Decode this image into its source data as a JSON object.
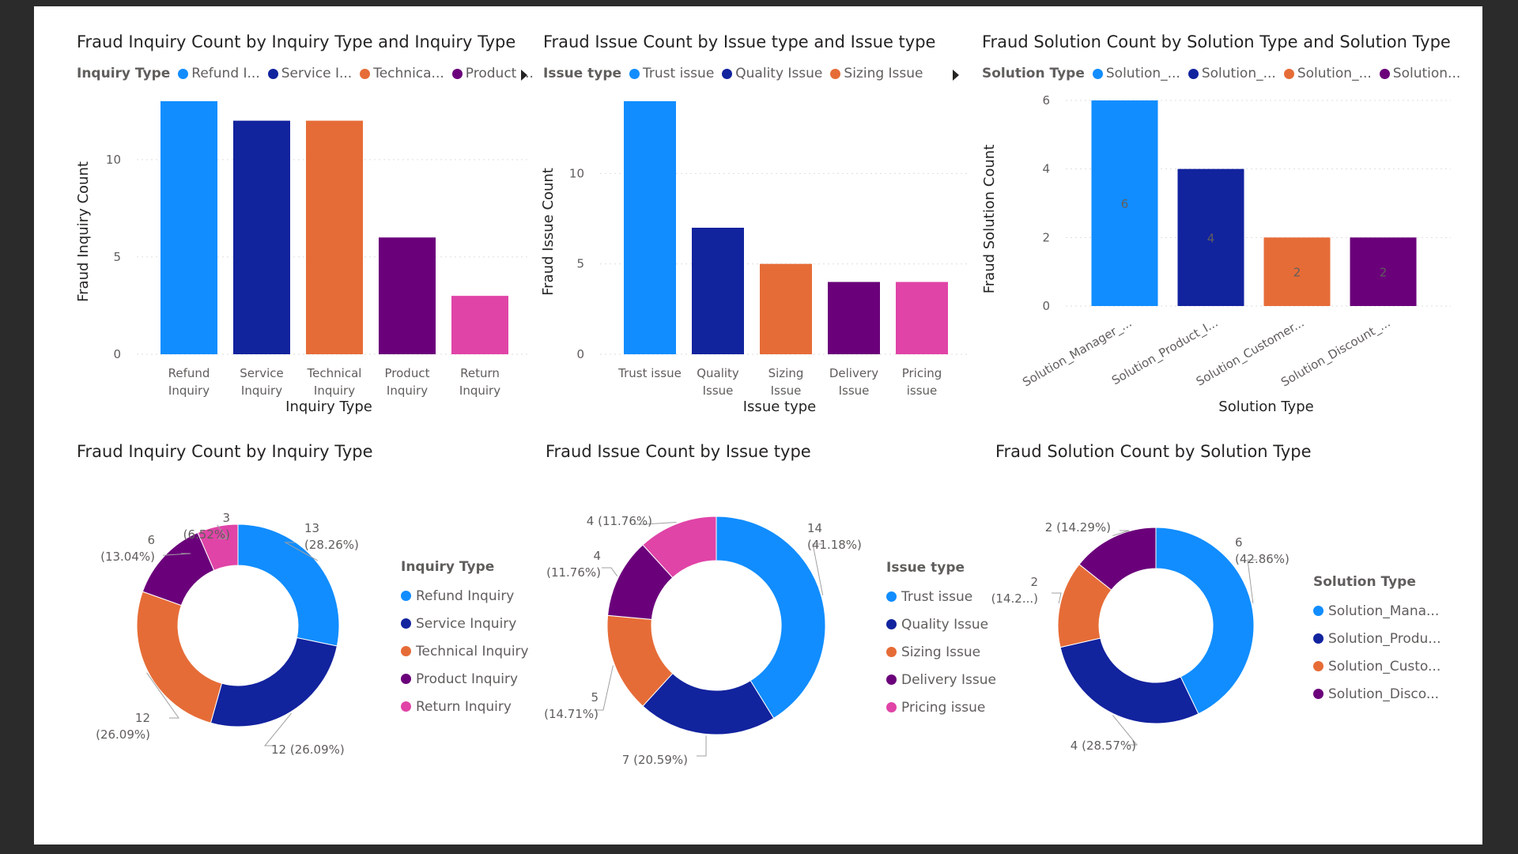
{
  "colors": {
    "c1": "#118DFF",
    "c2": "#12239E",
    "c3": "#E66C37",
    "c4": "#6B007B",
    "c5": "#E044A7"
  },
  "charts": {
    "inquiry_bar": {
      "title": "Fraud Inquiry Count by Inquiry Type and Inquiry Type",
      "legend_title": "Inquiry Type",
      "legend_items": [
        "Refund I...",
        "Service I...",
        "Technica...",
        "Product ..."
      ],
      "xlabel": "Inquiry Type",
      "ylabel": "Fraud Inquiry Count",
      "ticks": [
        "0",
        "5",
        "10"
      ],
      "categories": [
        [
          "Refund",
          "Inquiry"
        ],
        [
          "Service",
          "Inquiry"
        ],
        [
          "Technical",
          "Inquiry"
        ],
        [
          "Product",
          "Inquiry"
        ],
        [
          "Return",
          "Inquiry"
        ]
      ]
    },
    "issue_bar": {
      "title": "Fraud Issue Count by Issue type and Issue type",
      "legend_title": "Issue type",
      "legend_items": [
        "Trust issue",
        "Quality Issue",
        "Sizing Issue"
      ],
      "xlabel": "Issue type",
      "ylabel": "Fraud Issue Count",
      "ticks": [
        "0",
        "5",
        "10"
      ],
      "categories": [
        [
          "Trust issue"
        ],
        [
          "Quality",
          "Issue"
        ],
        [
          "Sizing",
          "Issue"
        ],
        [
          "Delivery",
          "Issue"
        ],
        [
          "Pricing",
          "issue"
        ]
      ]
    },
    "solution_bar": {
      "title": "Fraud Solution Count by Solution Type and Solution Type",
      "legend_title": "Solution Type",
      "legend_items": [
        "Solution_...",
        "Solution_...",
        "Solution_...",
        "Solution..."
      ],
      "xlabel": "Solution Type",
      "ylabel": "Fraud Solution Count",
      "ticks": [
        "0",
        "2",
        "4",
        "6"
      ],
      "categories": [
        "Solution_Manager_...",
        "Solution_Product_I...",
        "Solution_Customer...",
        "Solution_Discount_..."
      ],
      "data_labels": [
        "6",
        "4",
        "2",
        "2"
      ]
    },
    "inquiry_donut": {
      "title": "Fraud Inquiry Count by Inquiry Type",
      "legend_title": "Inquiry Type",
      "legend_items": [
        "Refund Inquiry",
        "Service Inquiry",
        "Technical Inquiry",
        "Product Inquiry",
        "Return Inquiry"
      ],
      "labels": [
        [
          "13",
          "(28.26%)"
        ],
        [
          "12 (26.09%)"
        ],
        [
          "12",
          "(26.09%)"
        ],
        [
          "6",
          "(13.04%)"
        ],
        [
          "3",
          "(6.52%)"
        ]
      ]
    },
    "issue_donut": {
      "title": "Fraud Issue Count by Issue type",
      "legend_title": "Issue type",
      "legend_items": [
        "Trust issue",
        "Quality Issue",
        "Sizing Issue",
        "Delivery Issue",
        "Pricing issue"
      ],
      "labels": [
        [
          "14",
          "(41.18%)"
        ],
        [
          "7 (20.59%)"
        ],
        [
          "5",
          "(14.71%)"
        ],
        [
          "4",
          "(11.76%)"
        ],
        [
          "4 (11.76%)"
        ]
      ]
    },
    "solution_donut": {
      "title": "Fraud Solution Count by Solution Type",
      "legend_title": "Solution Type",
      "legend_items": [
        "Solution_Mana...",
        "Solution_Produ...",
        "Solution_Custo...",
        "Solution_Disco..."
      ],
      "labels": [
        [
          "6",
          "(42.86%)"
        ],
        [
          "4 (28.57%)"
        ],
        [
          "2",
          "(14.2...)"
        ],
        [
          "2 (14.29%)"
        ]
      ]
    }
  },
  "chart_data": [
    {
      "type": "bar",
      "title": "Fraud Inquiry Count by Inquiry Type and Inquiry Type",
      "xlabel": "Inquiry Type",
      "ylabel": "Fraud Inquiry Count",
      "categories": [
        "Refund Inquiry",
        "Service Inquiry",
        "Technical Inquiry",
        "Product Inquiry",
        "Return Inquiry"
      ],
      "values": [
        13,
        12,
        12,
        6,
        3
      ],
      "ylim": [
        0,
        13
      ],
      "grid": true,
      "legend": "top"
    },
    {
      "type": "bar",
      "title": "Fraud Issue Count by Issue type and Issue type",
      "xlabel": "Issue type",
      "ylabel": "Fraud Issue Count",
      "categories": [
        "Trust issue",
        "Quality Issue",
        "Sizing Issue",
        "Delivery Issue",
        "Pricing issue"
      ],
      "values": [
        14,
        7,
        5,
        4,
        4
      ],
      "ylim": [
        0,
        14
      ],
      "grid": true,
      "legend": "top"
    },
    {
      "type": "bar",
      "title": "Fraud Solution Count by Solution Type and Solution Type",
      "xlabel": "Solution Type",
      "ylabel": "Fraud Solution Count",
      "categories": [
        "Solution_Manager_...",
        "Solution_Product_I...",
        "Solution_Customer...",
        "Solution_Discount_..."
      ],
      "values": [
        6,
        4,
        2,
        2
      ],
      "ylim": [
        0,
        6
      ],
      "grid": true,
      "legend": "top"
    },
    {
      "type": "pie",
      "title": "Fraud Inquiry Count by Inquiry Type",
      "categories": [
        "Refund Inquiry",
        "Service Inquiry",
        "Technical Inquiry",
        "Product Inquiry",
        "Return Inquiry"
      ],
      "values": [
        13,
        12,
        12,
        6,
        3
      ],
      "percentages": [
        28.26,
        26.09,
        26.09,
        13.04,
        6.52
      ],
      "legend": "right"
    },
    {
      "type": "pie",
      "title": "Fraud Issue Count by Issue type",
      "categories": [
        "Trust issue",
        "Quality Issue",
        "Sizing Issue",
        "Delivery Issue",
        "Pricing issue"
      ],
      "values": [
        14,
        7,
        5,
        4,
        4
      ],
      "percentages": [
        41.18,
        20.59,
        14.71,
        11.76,
        11.76
      ],
      "legend": "right"
    },
    {
      "type": "pie",
      "title": "Fraud Solution Count by Solution Type",
      "categories": [
        "Solution_Mana...",
        "Solution_Produ...",
        "Solution_Custo...",
        "Solution_Disco..."
      ],
      "values": [
        6,
        4,
        2,
        2
      ],
      "percentages": [
        42.86,
        28.57,
        14.29,
        14.29
      ],
      "legend": "right"
    }
  ]
}
